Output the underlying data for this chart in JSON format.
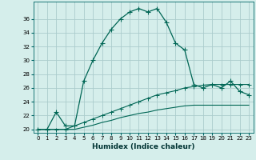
{
  "xlabel": "Humidex (Indice chaleur)",
  "background_color": "#d5eeeb",
  "grid_color": "#aacccc",
  "line_color": "#006655",
  "x": [
    0,
    1,
    2,
    3,
    4,
    5,
    6,
    7,
    8,
    9,
    10,
    11,
    12,
    13,
    14,
    15,
    16,
    17,
    18,
    19,
    20,
    21,
    22,
    23
  ],
  "y_main": [
    20.0,
    20.0,
    22.5,
    20.5,
    20.5,
    27.0,
    30.0,
    32.5,
    34.5,
    36.0,
    37.0,
    37.5,
    37.0,
    37.5,
    35.5,
    32.5,
    31.5,
    26.5,
    26.0,
    26.5,
    26.0,
    27.0,
    25.5,
    25.0
  ],
  "y_line1": [
    20.0,
    20.0,
    20.0,
    20.0,
    20.5,
    21.0,
    21.5,
    22.0,
    22.5,
    23.0,
    23.5,
    24.0,
    24.5,
    25.0,
    25.3,
    25.6,
    26.0,
    26.2,
    26.4,
    26.5,
    26.5,
    26.5,
    26.5,
    26.5
  ],
  "y_line2": [
    20.0,
    20.0,
    20.0,
    20.0,
    20.0,
    20.3,
    20.6,
    21.0,
    21.3,
    21.7,
    22.0,
    22.3,
    22.5,
    22.8,
    23.0,
    23.2,
    23.4,
    23.5,
    23.5,
    23.5,
    23.5,
    23.5,
    23.5,
    23.5
  ],
  "ylim": [
    19.5,
    38.5
  ],
  "xlim": [
    -0.5,
    23.5
  ],
  "yticks": [
    20,
    22,
    24,
    26,
    28,
    30,
    32,
    34,
    36
  ],
  "xticks": [
    0,
    1,
    2,
    3,
    4,
    5,
    6,
    7,
    8,
    9,
    10,
    11,
    12,
    13,
    14,
    15,
    16,
    17,
    18,
    19,
    20,
    21,
    22,
    23
  ],
  "marker_main": "D",
  "markersize_main": 2.2,
  "markersize_line1": 2.0,
  "linewidth_main": 0.9,
  "linewidth_line1": 0.8,
  "linewidth_line2": 0.8,
  "tick_fontsize": 5.0,
  "xlabel_fontsize": 6.5
}
